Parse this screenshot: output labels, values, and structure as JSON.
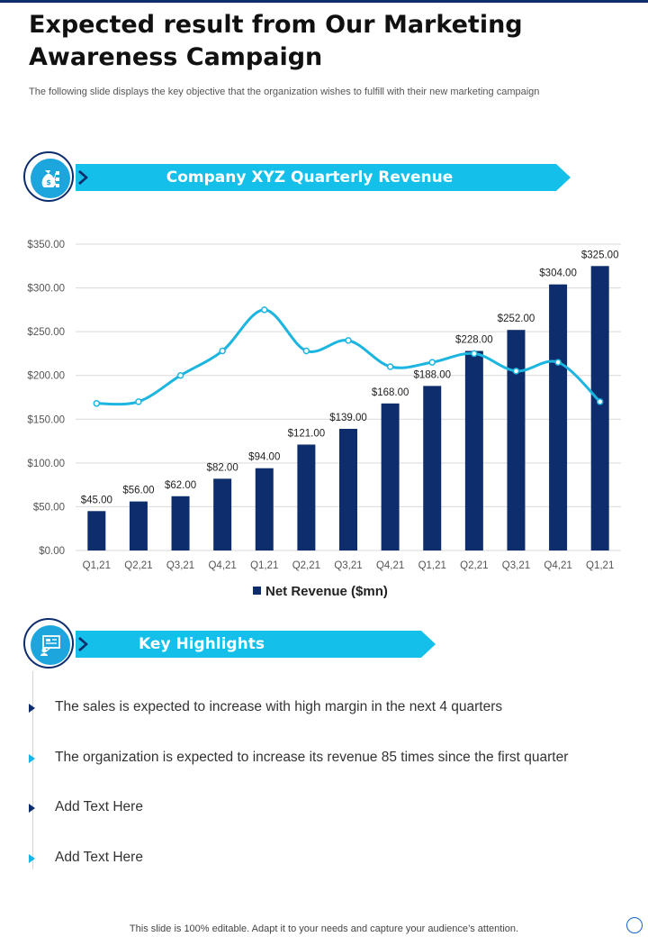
{
  "page": {
    "title": "Expected result from Our Marketing Awareness Campaign",
    "subtitle": "The following slide displays the key objective that the organization wishes to fulfill with their new marketing campaign",
    "footer": "This slide is 100% editable. Adapt it to your needs and capture your audience’s attention."
  },
  "chart_banner": {
    "label": "Company XYZ Quarterly Revenue",
    "icon": "money-bag-icon"
  },
  "highlights_banner": {
    "label": "Key Highlights",
    "icon": "presentation-icon"
  },
  "highlights": [
    "The sales is expected to increase with high margin in the next  4 quarters",
    "The organization is expected to increase its revenue  85 times since the first quarter",
    "Add Text Here",
    "Add Text Here"
  ],
  "colors": {
    "bar": "#0d2d6c",
    "line": "#1cb5e0",
    "banner": "#14c0ea",
    "accent_light": "#17b6e6"
  },
  "chart_data": {
    "type": "bar",
    "categories": [
      "Q1,21",
      "Q2,21",
      "Q3,21",
      "Q4,21",
      "Q1,21",
      "Q2,21",
      "Q3,21",
      "Q4,21",
      "Q1,21",
      "Q2,21",
      "Q3,21",
      "Q4,21",
      "Q1,21"
    ],
    "series": [
      {
        "name": "Net Revenue ($mn)",
        "type": "bar",
        "values": [
          45,
          56,
          62,
          82,
          94,
          121,
          139,
          168,
          188,
          228,
          252,
          304,
          325
        ],
        "labels": [
          "$45.00",
          "$56.00",
          "$62.00",
          "$82.00",
          "$94.00",
          "$121.00",
          "$139.00",
          "$168.00",
          "$188.00",
          "$228.00",
          "$252.00",
          "$304.00",
          "$325.00"
        ]
      },
      {
        "type": "line",
        "values": [
          168,
          170,
          200,
          228,
          275,
          228,
          240,
          210,
          215,
          225,
          205,
          215,
          170
        ]
      }
    ],
    "ylim": [
      0,
      350
    ],
    "yticks": [
      0,
      50,
      100,
      150,
      200,
      250,
      300,
      350
    ],
    "ytick_labels": [
      "$0.00",
      "$50.00",
      "$100.00",
      "$150.00",
      "$200.00",
      "$250.00",
      "$300.00",
      "$350.00"
    ],
    "grid": true,
    "legend": "bottom-center"
  }
}
